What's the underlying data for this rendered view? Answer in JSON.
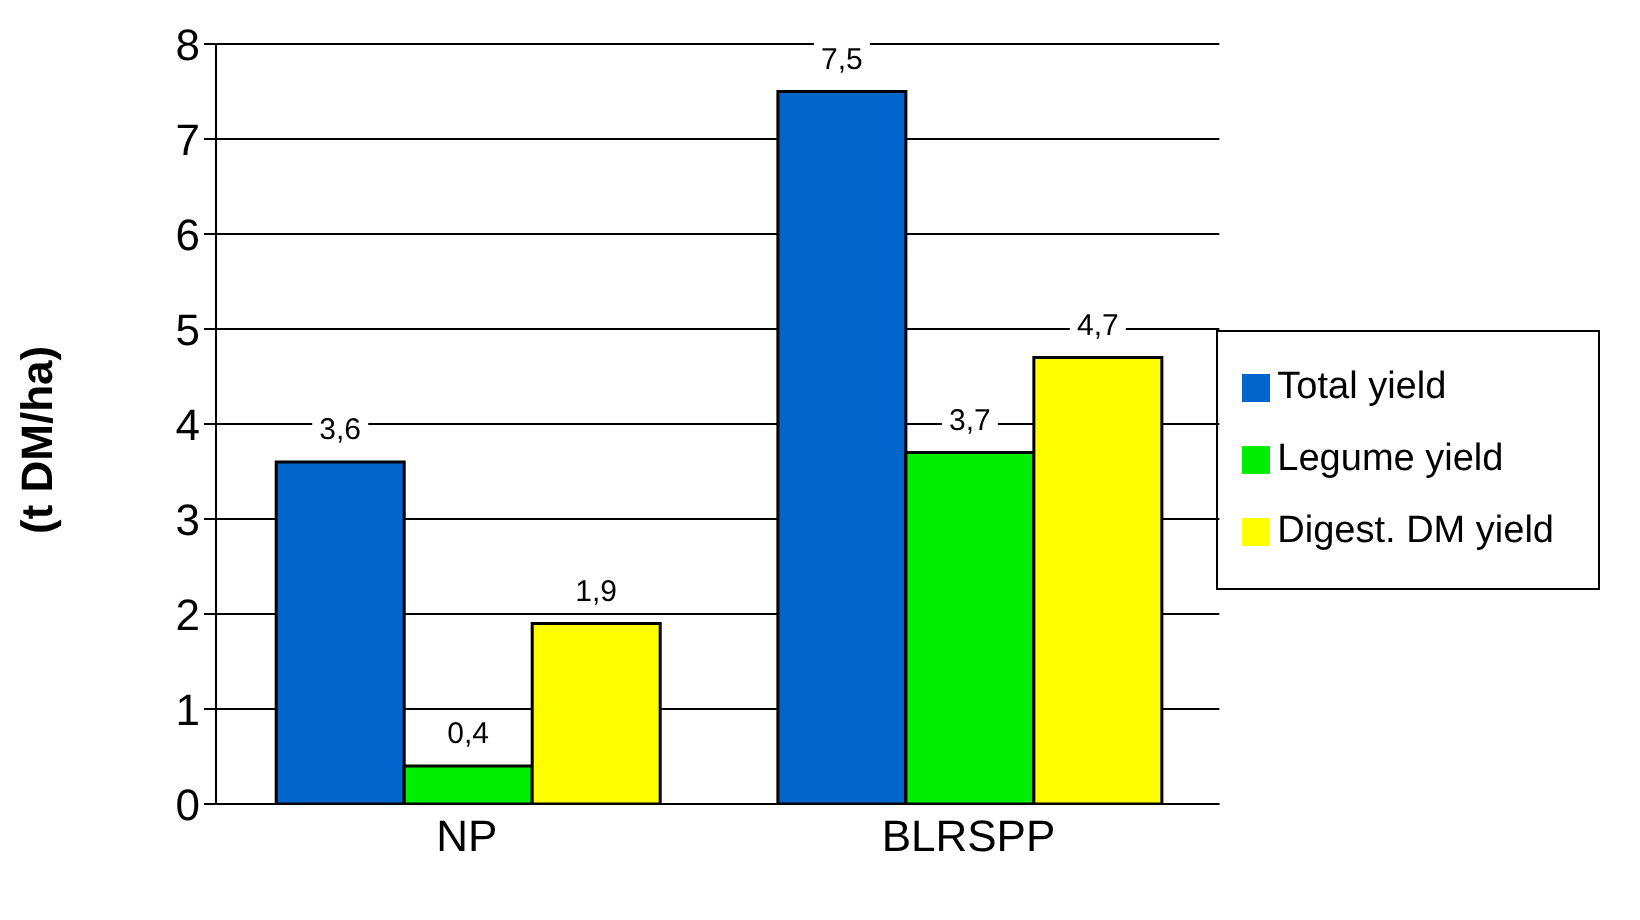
{
  "chart_data": {
    "type": "bar",
    "ylabel": "(t DM/ha)",
    "categories": [
      "NP",
      "BLRSPP"
    ],
    "series": [
      {
        "name": "Total yield",
        "color": "#0066cc",
        "values": [
          3.6,
          7.5
        ],
        "value_labels": [
          "3,6",
          "7,5"
        ]
      },
      {
        "name": "Legume yield",
        "color": "#00ee00",
        "values": [
          0.4,
          3.7
        ],
        "value_labels": [
          "0,4",
          "3,7"
        ]
      },
      {
        "name": "Digest. DM yield",
        "color": "#ffff00",
        "values": [
          1.9,
          4.7
        ],
        "value_labels": [
          "1,9",
          "4,7"
        ]
      }
    ],
    "ylim": [
      0,
      8
    ],
    "yticks": [
      0,
      1,
      2,
      3,
      4,
      5,
      6,
      7,
      8
    ],
    "grid": "y",
    "legend": "right"
  }
}
